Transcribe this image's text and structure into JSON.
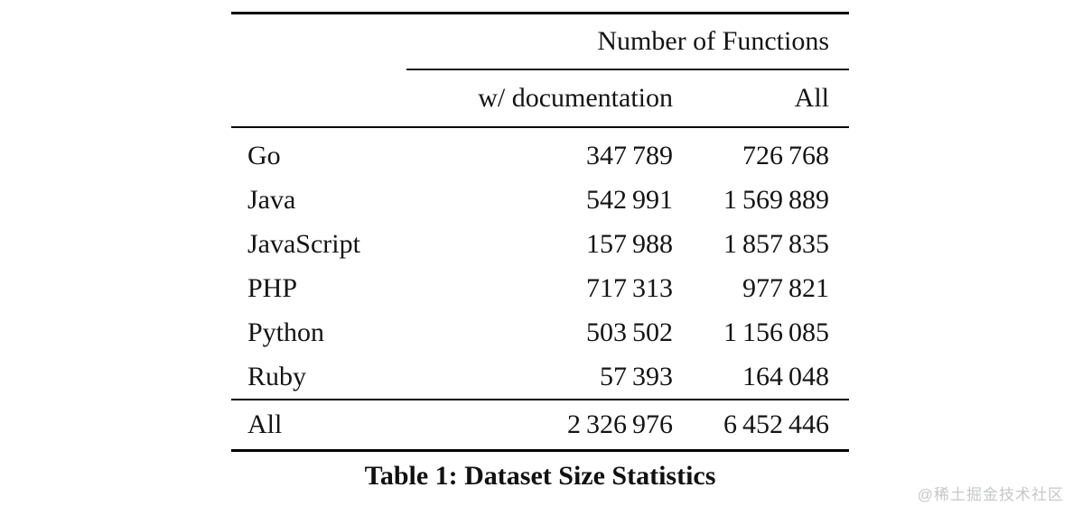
{
  "page": {
    "background": "#ffffff",
    "text_color": "#141414",
    "rule_color": "#000000",
    "watermark_color": "#c6c7c9"
  },
  "table": {
    "group_header": "Number of Functions",
    "columns": {
      "language": "",
      "with_doc": "w/ documentation",
      "all": "All"
    },
    "rows": [
      {
        "label": "Go",
        "with_doc": "347 789",
        "all": "726 768"
      },
      {
        "label": "Java",
        "with_doc": "542 991",
        "all": "1 569 889"
      },
      {
        "label": "JavaScript",
        "with_doc": "157 988",
        "all": "1 857 835"
      },
      {
        "label": "PHP",
        "with_doc": "717 313",
        "all": "977 821"
      },
      {
        "label": "Python",
        "with_doc": "503 502",
        "all": "1 156 085"
      },
      {
        "label": "Ruby",
        "with_doc": "57 393",
        "all": "164 048"
      }
    ],
    "total_row": {
      "label": "All",
      "with_doc": "2 326 976",
      "all": "6 452 446"
    }
  },
  "caption": "Table 1: Dataset Size Statistics",
  "watermark": "@稀土掘金技术社区"
}
